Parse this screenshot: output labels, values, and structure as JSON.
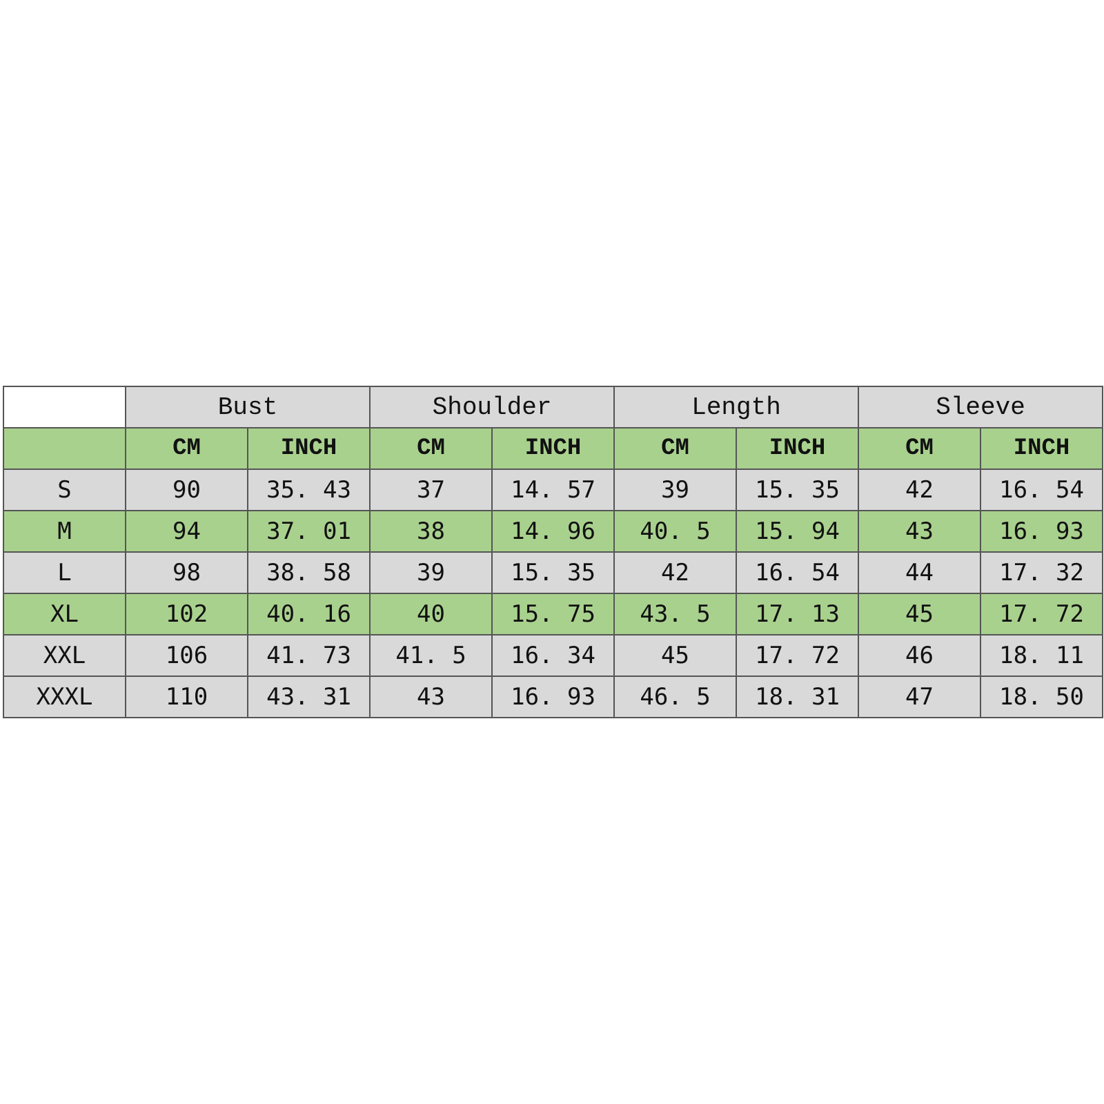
{
  "table": {
    "groups": [
      "Bust",
      "Shoulder",
      "Length",
      "Sleeve"
    ],
    "units": [
      "CM",
      "INCH",
      "CM",
      "INCH",
      "CM",
      "INCH",
      "CM",
      "INCH"
    ],
    "rows": [
      {
        "size": "S",
        "cells": [
          "90",
          "35. 43",
          "37",
          "14. 57",
          "39",
          "15. 35",
          "42",
          "16. 54"
        ]
      },
      {
        "size": "M",
        "cells": [
          "94",
          "37. 01",
          "38",
          "14. 96",
          "40. 5",
          "15. 94",
          "43",
          "16. 93"
        ]
      },
      {
        "size": "L",
        "cells": [
          "98",
          "38. 58",
          "39",
          "15. 35",
          "42",
          "16. 54",
          "44",
          "17. 32"
        ]
      },
      {
        "size": "XL",
        "cells": [
          "102",
          "40. 16",
          "40",
          "15. 75",
          "43. 5",
          "17. 13",
          "45",
          "17. 72"
        ]
      },
      {
        "size": "XXL",
        "cells": [
          "106",
          "41. 73",
          "41. 5",
          "16. 34",
          "45",
          "17. 72",
          "46",
          "18. 11"
        ]
      },
      {
        "size": "XXXL",
        "cells": [
          "110",
          "43. 31",
          "43",
          "16. 93",
          "46. 5",
          "18. 31",
          "47",
          "18. 50"
        ]
      }
    ]
  }
}
